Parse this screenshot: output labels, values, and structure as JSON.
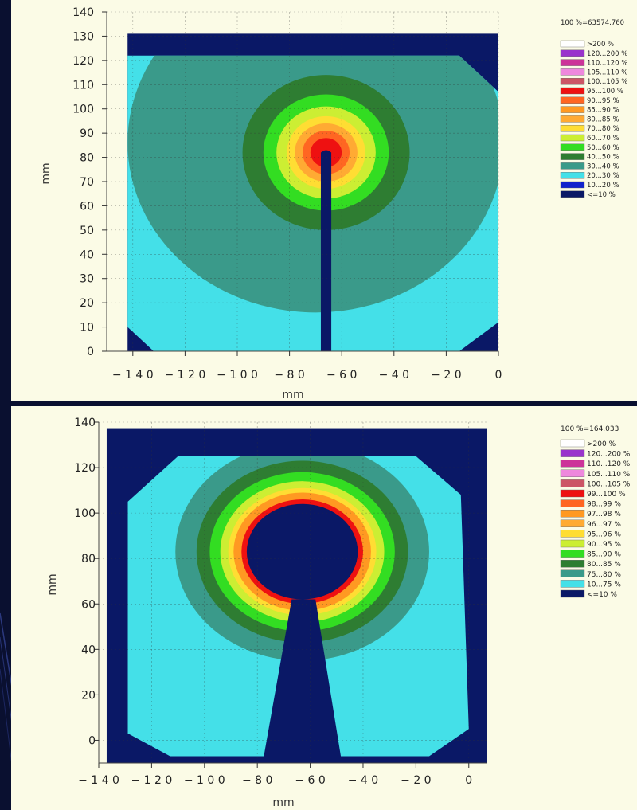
{
  "chart_data": [
    {
      "type": "heatmap",
      "title": "",
      "xlabel": "mm",
      "ylabel": "mm",
      "xlim": [
        -150,
        0
      ],
      "ylim": [
        0,
        140
      ],
      "xticks": [
        -140,
        -120,
        -100,
        -80,
        -60,
        -40,
        -20,
        0
      ],
      "yticks": [
        0,
        10,
        20,
        30,
        40,
        50,
        60,
        70,
        80,
        90,
        100,
        110,
        120,
        130,
        140
      ],
      "grid": true,
      "legend_title": "100 %=63574.760",
      "legend_position": "right",
      "legend": [
        {
          "label": ">200 %",
          "color": "#ffffff"
        },
        {
          "label": "120...200 %",
          "color": "#9933cc"
        },
        {
          "label": "110...120 %",
          "color": "#cc3399"
        },
        {
          "label": "105...110 %",
          "color": "#ee88dd"
        },
        {
          "label": "100...105 %",
          "color": "#cc5566"
        },
        {
          "label": "95...100 %",
          "color": "#ee1111"
        },
        {
          "label": "90...95 %",
          "color": "#ff6622"
        },
        {
          "label": "85...90 %",
          "color": "#ff9922"
        },
        {
          "label": "80...85 %",
          "color": "#ffaa33"
        },
        {
          "label": "70...80 %",
          "color": "#ffdd33"
        },
        {
          "label": "60...70 %",
          "color": "#ccee33"
        },
        {
          "label": "50...60 %",
          "color": "#33dd22"
        },
        {
          "label": "40...50 %",
          "color": "#2e7d32"
        },
        {
          "label": "30...40 %",
          "color": "#3a9a8a"
        },
        {
          "label": "20...30 %",
          "color": "#44e0e8"
        },
        {
          "label": "10...20 %",
          "color": "#1122cc"
        },
        {
          "label": "<=10 %",
          "color": "#0a1866"
        }
      ],
      "field": {
        "frame_x": [
          -142,
          0
        ],
        "frame_y": [
          0,
          131
        ],
        "plate_polygon": [
          [
            -132,
            0
          ],
          [
            -142,
            10
          ],
          [
            -142,
            122
          ],
          [
            -15,
            122
          ],
          [
            0,
            107
          ],
          [
            0,
            12
          ],
          [
            -15,
            0
          ]
        ],
        "source": [
          -66,
          82
        ],
        "stem_x": [
          -68,
          -64
        ],
        "stem_top": 82,
        "bands": [
          {
            "level": "30...40 %",
            "rx": 72,
            "ry": 70,
            "cx": -70,
            "cy": 86
          },
          {
            "level": "40...50 %",
            "r": 32
          },
          {
            "level": "50...60 %",
            "r": 24
          },
          {
            "level": "60...70 %",
            "r": 19
          },
          {
            "level": "70...80 %",
            "r": 15
          },
          {
            "level": "80...85 %",
            "r": 12
          },
          {
            "level": "90...95 %",
            "r": 9
          },
          {
            "level": "95...100 %",
            "r": 6
          }
        ]
      }
    },
    {
      "type": "heatmap",
      "title": "",
      "xlabel": "mm",
      "ylabel": "mm",
      "xlim": [
        -140,
        7
      ],
      "ylim": [
        -10,
        140
      ],
      "xticks": [
        -140,
        -120,
        -100,
        -80,
        -60,
        -40,
        -20,
        0
      ],
      "yticks": [
        0,
        20,
        40,
        60,
        80,
        100,
        120,
        140
      ],
      "grid": true,
      "legend_title": "100 %=164.033",
      "legend_position": "right",
      "legend": [
        {
          "label": ">200 %",
          "color": "#ffffff"
        },
        {
          "label": "120...200 %",
          "color": "#9933cc"
        },
        {
          "label": "110...120 %",
          "color": "#cc3399"
        },
        {
          "label": "105...110 %",
          "color": "#ee88dd"
        },
        {
          "label": "100...105 %",
          "color": "#cc5566"
        },
        {
          "label": "99...100 %",
          "color": "#ee1111"
        },
        {
          "label": "98...99 %",
          "color": "#ff6622"
        },
        {
          "label": "97...98 %",
          "color": "#ff9922"
        },
        {
          "label": "96...97 %",
          "color": "#ffaa33"
        },
        {
          "label": "95...96 %",
          "color": "#ffdd33"
        },
        {
          "label": "90...95 %",
          "color": "#ccee33"
        },
        {
          "label": "85...90 %",
          "color": "#33dd22"
        },
        {
          "label": "80...85 %",
          "color": "#2e7d32"
        },
        {
          "label": "75...80 %",
          "color": "#3a9a8a"
        },
        {
          "label": "10...75 %",
          "color": "#44e0e8"
        },
        {
          "label": "<=10 %",
          "color": "#0a1866"
        }
      ],
      "field": {
        "frame_x": [
          -137,
          7
        ],
        "frame_y": [
          -10,
          137
        ],
        "plate_polygon": [
          [
            -129,
            3
          ],
          [
            -129,
            105
          ],
          [
            -110,
            125
          ],
          [
            -20,
            125
          ],
          [
            -3,
            108
          ],
          [
            0,
            5
          ],
          [
            -15,
            -7
          ],
          [
            -113,
            -7
          ]
        ],
        "cavity_center": [
          -63,
          83
        ],
        "cavity_radius": 21,
        "stem_bottom": [
          -78,
          -48
        ],
        "stem_top": [
          -67,
          -58
        ],
        "stem_top_y": 62,
        "bands": [
          {
            "level": "75...80 %",
            "r": 48
          },
          {
            "level": "80...85 %",
            "r": 40
          },
          {
            "level": "85...90 %",
            "r": 35
          },
          {
            "level": "90...95 %",
            "r": 31
          },
          {
            "level": "95...96 %",
            "r": 28
          },
          {
            "level": "97...98 %",
            "r": 26
          },
          {
            "level": "99...100 %",
            "r": 23
          }
        ]
      }
    }
  ]
}
